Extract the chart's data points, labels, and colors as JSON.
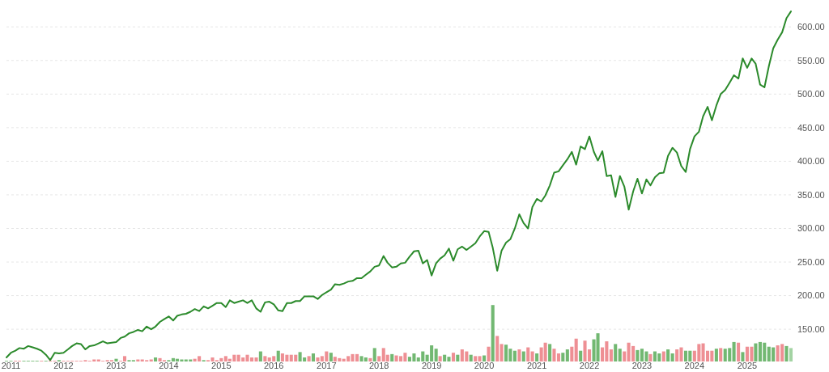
{
  "chart_data": {
    "type": "line",
    "x": [
      "2010-12",
      "2011-01",
      "2011-02",
      "2011-03",
      "2011-04",
      "2011-05",
      "2011-06",
      "2011-07",
      "2011-08",
      "2011-09",
      "2011-10",
      "2011-11",
      "2011-12",
      "2012-01",
      "2012-02",
      "2012-03",
      "2012-04",
      "2012-05",
      "2012-06",
      "2012-07",
      "2012-08",
      "2012-09",
      "2012-10",
      "2012-11",
      "2012-12",
      "2013-01",
      "2013-02",
      "2013-03",
      "2013-04",
      "2013-05",
      "2013-06",
      "2013-07",
      "2013-08",
      "2013-09",
      "2013-10",
      "2013-11",
      "2013-12",
      "2014-01",
      "2014-02",
      "2014-03",
      "2014-04",
      "2014-05",
      "2014-06",
      "2014-07",
      "2014-08",
      "2014-09",
      "2014-10",
      "2014-11",
      "2014-12",
      "2015-01",
      "2015-02",
      "2015-03",
      "2015-04",
      "2015-05",
      "2015-06",
      "2015-07",
      "2015-08",
      "2015-09",
      "2015-10",
      "2015-11",
      "2015-12",
      "2016-01",
      "2016-02",
      "2016-03",
      "2016-04",
      "2016-05",
      "2016-06",
      "2016-07",
      "2016-08",
      "2016-09",
      "2016-10",
      "2016-11",
      "2016-12",
      "2017-01",
      "2017-02",
      "2017-03",
      "2017-04",
      "2017-05",
      "2017-06",
      "2017-07",
      "2017-08",
      "2017-09",
      "2017-10",
      "2017-11",
      "2017-12",
      "2018-01",
      "2018-02",
      "2018-03",
      "2018-04",
      "2018-05",
      "2018-06",
      "2018-07",
      "2018-08",
      "2018-09",
      "2018-10",
      "2018-11",
      "2018-12",
      "2019-01",
      "2019-02",
      "2019-03",
      "2019-04",
      "2019-05",
      "2019-06",
      "2019-07",
      "2019-08",
      "2019-09",
      "2019-10",
      "2019-11",
      "2019-12",
      "2020-01",
      "2020-02",
      "2020-03",
      "2020-04",
      "2020-05",
      "2020-06",
      "2020-07",
      "2020-08",
      "2020-09",
      "2020-10",
      "2020-11",
      "2020-12",
      "2021-01",
      "2021-02",
      "2021-03",
      "2021-04",
      "2021-05",
      "2021-06",
      "2021-07",
      "2021-08",
      "2021-09",
      "2021-10",
      "2021-11",
      "2021-12",
      "2022-01",
      "2022-02",
      "2022-03",
      "2022-04",
      "2022-05",
      "2022-06",
      "2022-07",
      "2022-08",
      "2022-09",
      "2022-10",
      "2022-11",
      "2022-12",
      "2023-01",
      "2023-02",
      "2023-03",
      "2023-04",
      "2023-05",
      "2023-06",
      "2023-07",
      "2023-08",
      "2023-09",
      "2023-10",
      "2023-11",
      "2023-12",
      "2024-01",
      "2024-02",
      "2024-03",
      "2024-04",
      "2024-05",
      "2024-06",
      "2024-07",
      "2024-08",
      "2024-09",
      "2024-10",
      "2024-11",
      "2024-12",
      "2025-01",
      "2025-02",
      "2025-03",
      "2025-04",
      "2025-05",
      "2025-06",
      "2025-07",
      "2025-08",
      "2025-09",
      "2025-10",
      "2025-11"
    ],
    "xlim": [
      "2010-12",
      "2025-11"
    ],
    "xticks": [
      "2011",
      "2012",
      "2013",
      "2014",
      "2015",
      "2016",
      "2017",
      "2018",
      "2019",
      "2020",
      "2021",
      "2022",
      "2023",
      "2024",
      "2025"
    ],
    "ylim": [
      102,
      640
    ],
    "yticks": [
      {
        "value": 150,
        "label": "150.00"
      },
      {
        "value": 200,
        "label": "200.00"
      },
      {
        "value": 250,
        "label": "250.00"
      },
      {
        "value": 300,
        "label": "300.00"
      },
      {
        "value": 350,
        "label": "350.00"
      },
      {
        "value": 400,
        "label": "400.00"
      },
      {
        "value": 450,
        "label": "450.00"
      },
      {
        "value": 500,
        "label": "500.00"
      },
      {
        "value": 550,
        "label": "550.00"
      },
      {
        "value": 600,
        "label": "600.00"
      }
    ],
    "grid": "y",
    "series": [
      {
        "color": "#2b8a2b",
        "values": [
          108,
          115,
          118,
          122,
          121,
          125,
          123,
          121,
          118,
          112,
          104,
          115,
          114,
          115,
          120,
          125,
          129,
          128,
          120,
          125,
          126,
          129,
          132,
          129,
          130,
          131,
          137,
          139,
          144,
          146,
          149,
          147,
          154,
          150,
          154,
          161,
          165,
          169,
          163,
          170,
          172,
          173,
          176,
          180,
          177,
          184,
          181,
          185,
          189,
          189,
          183,
          193,
          189,
          191,
          193,
          189,
          193,
          181,
          176,
          190,
          191,
          187,
          178,
          177,
          189,
          189,
          192,
          192,
          199,
          199,
          199,
          195,
          201,
          205,
          209,
          217,
          216,
          218,
          221,
          222,
          226,
          226,
          231,
          236,
          243,
          245,
          259,
          249,
          242,
          243,
          248,
          249,
          258,
          266,
          267,
          248,
          253,
          230,
          248,
          255,
          260,
          270,
          252,
          269,
          273,
          268,
          273,
          278,
          288,
          296,
          295,
          271,
          237,
          267,
          279,
          284,
          300,
          321,
          308,
          300,
          332,
          344,
          340,
          349,
          364,
          383,
          385,
          394,
          403,
          414,
          395,
          422,
          418,
          437,
          414,
          401,
          415,
          378,
          379,
          347,
          378,
          362,
          328,
          355,
          374,
          352,
          373,
          364,
          376,
          382,
          383,
          408,
          420,
          413,
          393,
          384,
          418,
          437,
          444,
          467,
          481,
          461,
          483,
          500,
          506,
          517,
          528,
          523,
          553,
          539,
          553,
          545,
          514,
          510,
          542,
          568,
          581,
          592,
          613,
          623
        ]
      },
      {
        "type": "bar",
        "values": [
          103,
          103,
          103,
          103,
          103,
          103,
          103,
          103,
          103,
          103,
          103,
          103,
          104,
          103,
          103,
          103,
          103,
          103,
          104,
          103,
          105,
          105,
          103,
          104,
          104,
          106,
          103,
          110,
          104,
          104,
          105,
          105,
          104,
          105,
          108,
          107,
          104,
          104,
          107,
          106,
          105,
          105,
          105,
          106,
          110,
          104,
          104,
          108,
          104,
          107,
          110,
          106,
          112,
          112,
          108,
          112,
          108,
          108,
          117,
          110,
          108,
          110,
          118,
          114,
          112,
          112,
          112,
          116,
          108,
          110,
          114,
          108,
          110,
          117,
          115,
          109,
          107,
          106,
          110,
          113,
          113,
          110,
          108,
          107,
          122,
          110,
          122,
          112,
          113,
          111,
          110,
          115,
          109,
          114,
          108,
          117,
          112,
          126,
          121,
          110,
          112,
          109,
          115,
          112,
          120,
          117,
          112,
          110,
          110,
          111,
          124,
          186,
          140,
          128,
          127,
          121,
          118,
          120,
          117,
          123,
          117,
          114,
          123,
          130,
          128,
          121,
          114,
          115,
          120,
          124,
          136,
          118,
          133,
          120,
          135,
          144,
          123,
          132,
          120,
          128,
          121,
          117,
          130,
          125,
          119,
          121,
          117,
          113,
          117,
          114,
          117,
          120,
          114,
          120,
          123,
          118,
          118,
          118,
          128,
          129,
          118,
          118,
          121,
          122,
          121,
          122,
          131,
          130,
          116,
          124,
          124,
          129,
          131,
          130,
          124,
          123,
          126,
          128,
          125,
          122
        ],
        "colors": [
          "#72b872",
          "#72b872",
          "#ee8f94",
          "#ee8f94",
          "#72b872",
          "#72b872",
          "#72b872",
          "#72b872",
          "#ee8f94",
          "#72b872",
          "#ee8f94",
          "#ee8f94",
          "#72b872",
          "#ee8f94",
          "#ee8f94",
          "#ee8f94",
          "#ee8f94",
          "#ee8f94",
          "#ee8f94",
          "#ee8f94",
          "#ee8f94",
          "#ee8f94",
          "#ee8f94",
          "#ee8f94",
          "#ee8f94",
          "#72b872",
          "#ee8f94",
          "#ee8f94",
          "#72b872",
          "#72b872",
          "#ee8f94",
          "#ee8f94",
          "#ee8f94",
          "#ee8f94",
          "#72b872",
          "#ee8f94",
          "#ee8f94",
          "#72b872",
          "#72b872",
          "#72b872",
          "#72b872",
          "#72b872",
          "#72b872",
          "#ee8f94",
          "#ee8f94",
          "#72b872",
          "#ee8f94",
          "#ee8f94",
          "#ee8f94",
          "#ee8f94",
          "#ee8f94",
          "#ee8f94",
          "#ee8f94",
          "#ee8f94",
          "#ee8f94",
          "#ee8f94",
          "#ee8f94",
          "#ee8f94",
          "#72b872",
          "#ee8f94",
          "#ee8f94",
          "#ee8f94",
          "#72b872",
          "#ee8f94",
          "#ee8f94",
          "#ee8f94",
          "#ee8f94",
          "#72b872",
          "#72b872",
          "#ee8f94",
          "#72b872",
          "#ee8f94",
          "#ee8f94",
          "#ee8f94",
          "#72b872",
          "#ee8f94",
          "#ee8f94",
          "#ee8f94",
          "#ee8f94",
          "#ee8f94",
          "#ee8f94",
          "#72b872",
          "#72b872",
          "#ee8f94",
          "#72b872",
          "#ee8f94",
          "#ee8f94",
          "#ee8f94",
          "#72b872",
          "#ee8f94",
          "#ee8f94",
          "#ee8f94",
          "#72b872",
          "#72b872",
          "#72b872",
          "#72b872",
          "#72b872",
          "#72b872",
          "#72b872",
          "#ee8f94",
          "#72b872",
          "#72b872",
          "#ee8f94",
          "#72b872",
          "#ee8f94",
          "#ee8f94",
          "#72b872",
          "#ee8f94",
          "#ee8f94",
          "#72b872",
          "#ee8f94",
          "#72b872",
          "#ee8f94",
          "#ee8f94",
          "#72b872",
          "#72b872",
          "#72b872",
          "#ee8f94",
          "#72b872",
          "#ee8f94",
          "#ee8f94",
          "#72b872",
          "#ee8f94",
          "#ee8f94",
          "#72b872",
          "#ee8f94",
          "#ee8f94",
          "#72b872",
          "#72b872",
          "#ee8f94",
          "#ee8f94",
          "#72b872",
          "#ee8f94",
          "#ee8f94",
          "#72b872",
          "#72b872",
          "#ee8f94",
          "#ee8f94",
          "#ee8f94",
          "#72b872",
          "#72b872",
          "#ee8f94",
          "#ee8f94",
          "#ee8f94",
          "#72b872",
          "#72b872",
          "#72b872",
          "#ee8f94",
          "#72b872",
          "#72b872",
          "#ee8f94",
          "#72b872",
          "#72b872",
          "#ee8f94",
          "#ee8f94",
          "#72b872",
          "#72b872",
          "#ee8f94",
          "#ee8f94",
          "#ee8f94",
          "#ee8f94",
          "#ee8f94",
          "#72b872",
          "#ee8f94",
          "#72b872",
          "#72b872",
          "#72b872",
          "#ee8f94",
          "#72b872",
          "#ee8f94",
          "#ee8f94",
          "#72b872",
          "#72b872",
          "#72b872",
          "#72b872",
          "#72b872",
          "#ee8f94",
          "#ee8f94",
          "#72b872",
          "#a3d3a3"
        ]
      }
    ]
  }
}
